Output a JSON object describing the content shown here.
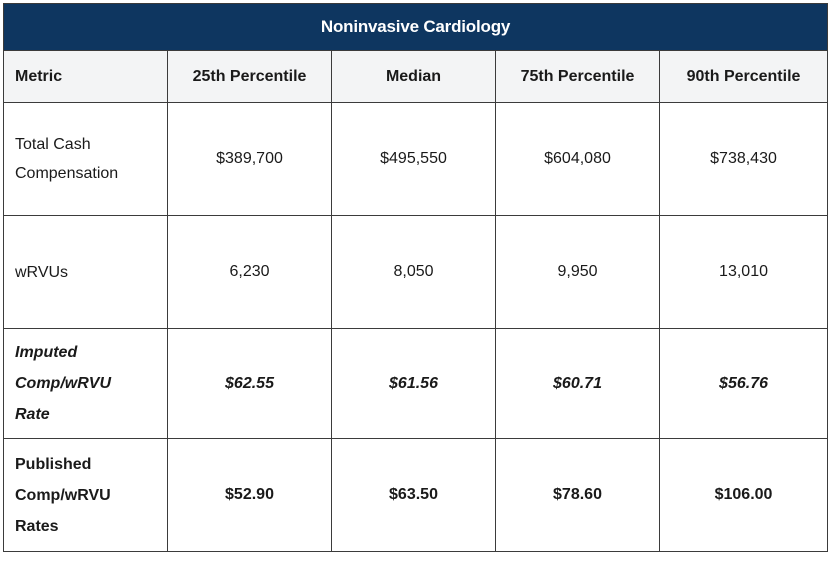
{
  "table": {
    "title": "Noninvasive Cardiology",
    "headers": [
      "Metric",
      "25th Percentile",
      "Median",
      "75th Percentile",
      "90th Percentile"
    ],
    "rows": [
      {
        "metric": "Total Cash\nCompensation",
        "values": [
          "$389,700",
          "$495,550",
          "$604,080",
          "$738,430"
        ]
      },
      {
        "metric": "wRVUs",
        "values": [
          "6,230",
          "8,050",
          "9,950",
          "13,010"
        ]
      },
      {
        "metric": "Imputed\nComp/wRVU\nRate",
        "values": [
          "$62.55",
          "$61.56",
          "$60.71",
          "$56.76"
        ]
      },
      {
        "metric": "Published\nComp/wRVU\nRates",
        "values": [
          "$52.90",
          "$63.50",
          "$78.60",
          "$106.00"
        ]
      }
    ]
  }
}
